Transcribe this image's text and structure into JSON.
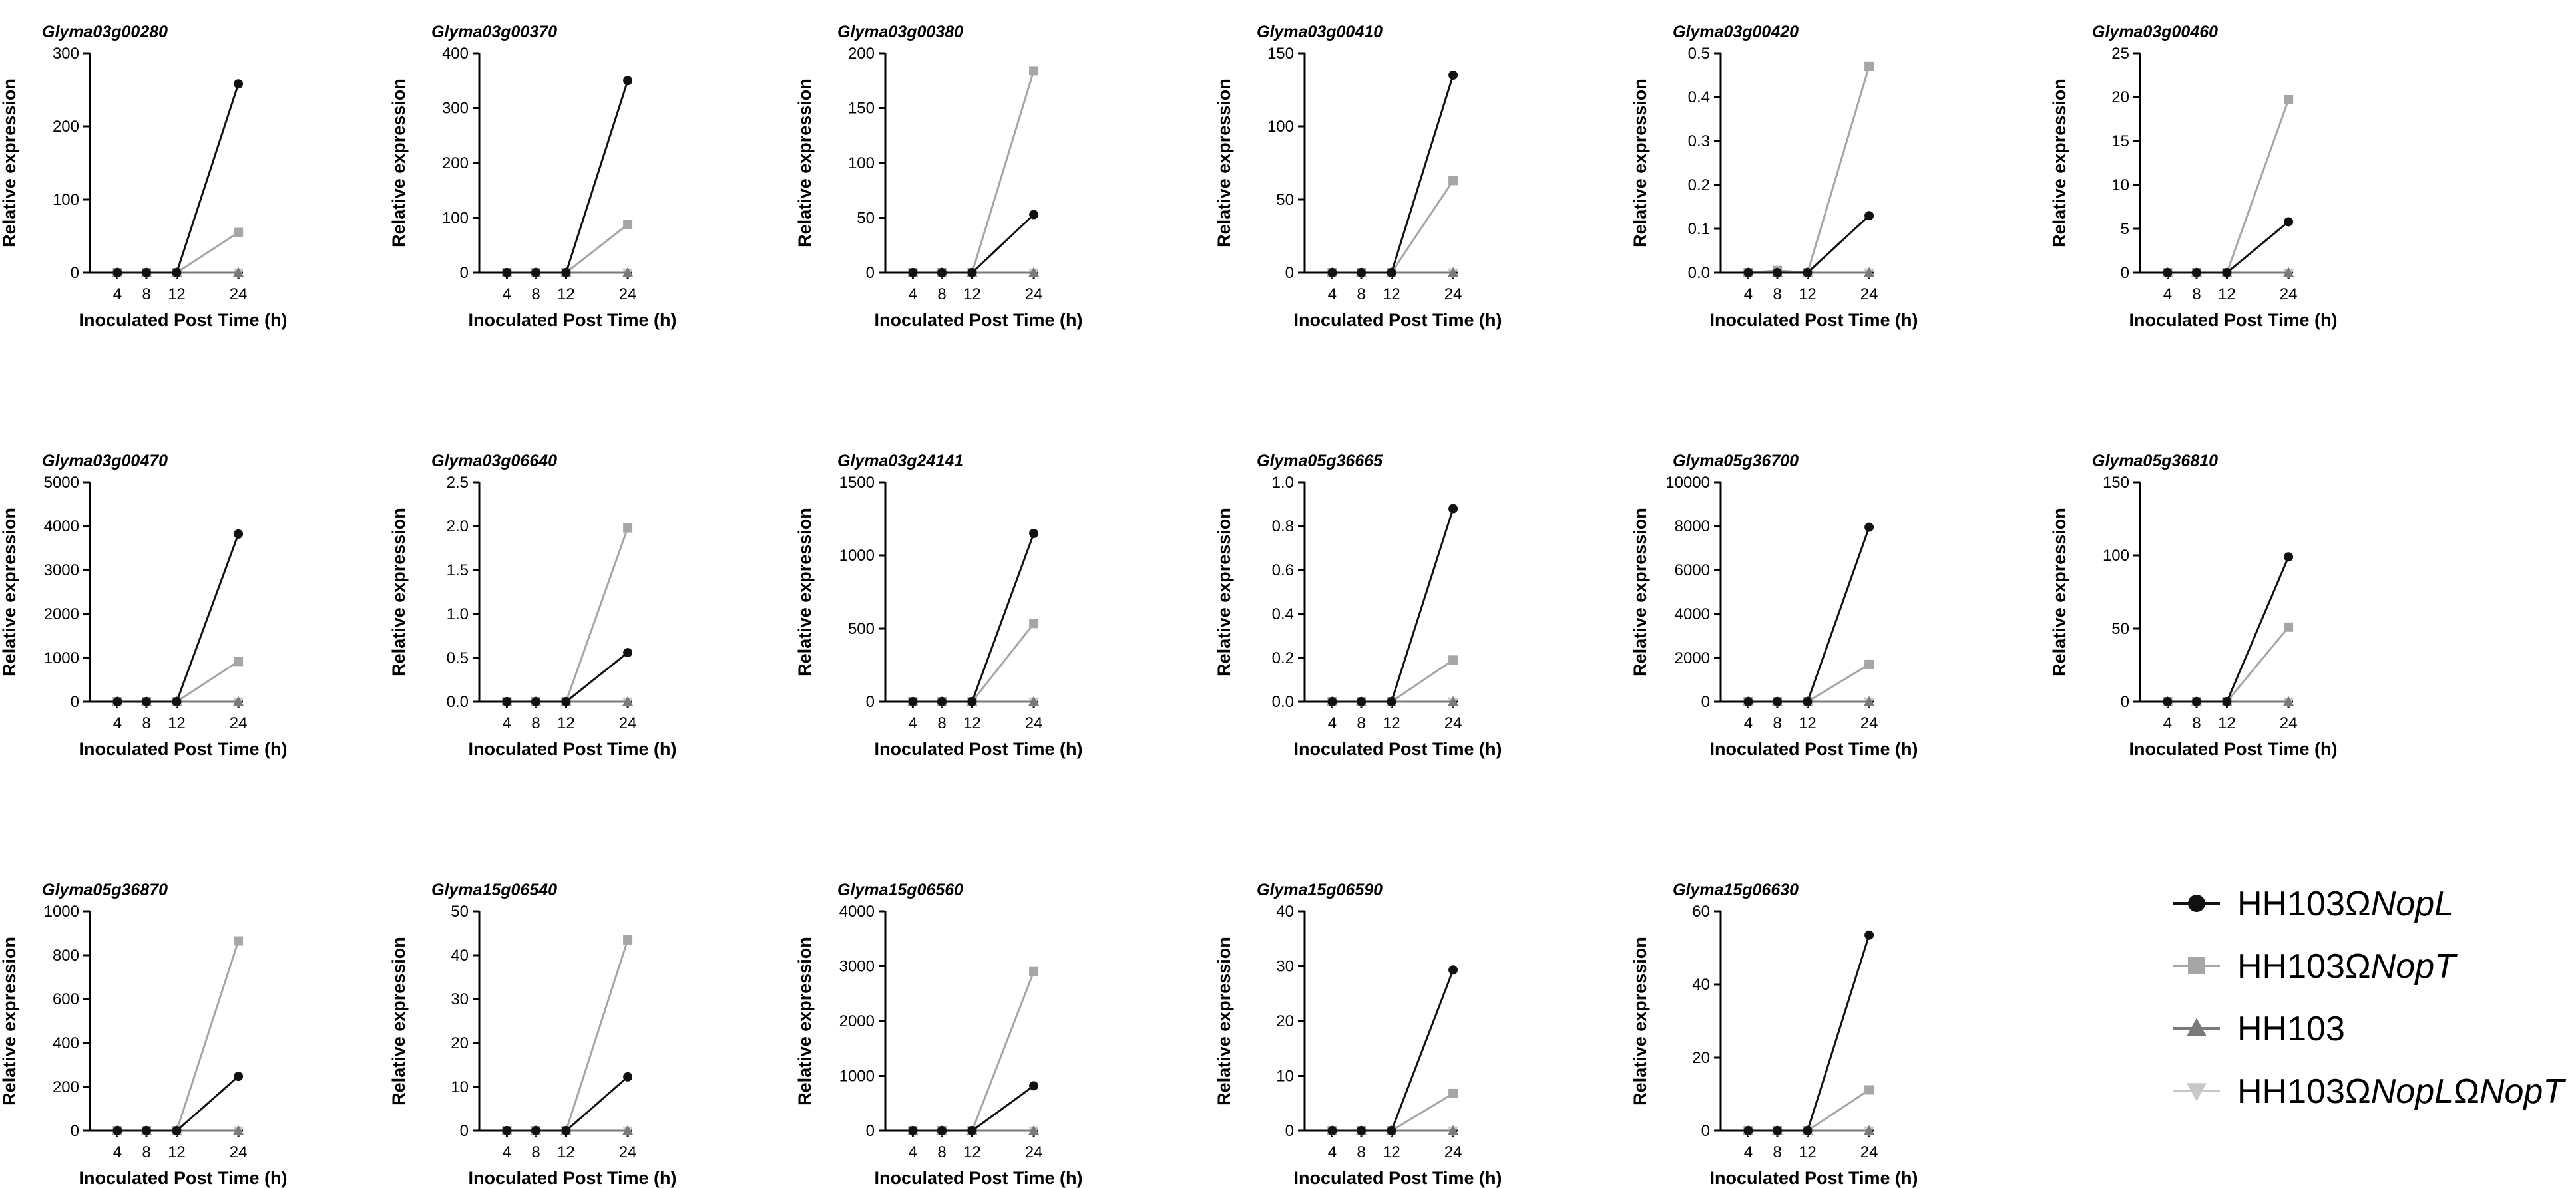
{
  "chart_data": {
    "type": "line",
    "x": [
      "4",
      "8",
      "12",
      "24"
    ],
    "xlabel": "Inoculated Post Time (h)",
    "ylabel": "Relative expression",
    "legend": {
      "position": "bottom-right",
      "items": [
        {
          "key": "nopl",
          "parts": [
            {
              "text": "HH103Ω",
              "italic": false
            },
            {
              "text": "NopL",
              "italic": true
            }
          ],
          "color": "#111111",
          "marker": "circle"
        },
        {
          "key": "nopt",
          "parts": [
            {
              "text": "HH103Ω",
              "italic": false
            },
            {
              "text": "NopT",
              "italic": true
            }
          ],
          "color": "#a6a6a6",
          "marker": "square"
        },
        {
          "key": "wt",
          "parts": [
            {
              "text": "HH103",
              "italic": false
            }
          ],
          "color": "#7a7a7a",
          "marker": "triangle-up"
        },
        {
          "key": "double",
          "parts": [
            {
              "text": "HH103Ω",
              "italic": false
            },
            {
              "text": "NopL",
              "italic": true
            },
            {
              "text": "Ω",
              "italic": false
            },
            {
              "text": "NopT",
              "italic": true
            }
          ],
          "color": "#c8c8c8",
          "marker": "triangle-down"
        }
      ]
    },
    "panels": [
      {
        "title": "Glyma03g00280",
        "ylim": [
          0,
          300
        ],
        "yticks": [
          "0",
          "100",
          "200",
          "300"
        ],
        "series": [
          {
            "key": "nopl",
            "values": [
              0,
              0,
              0,
              258
            ]
          },
          {
            "key": "nopt",
            "values": [
              0,
              0,
              0,
              55
            ]
          },
          {
            "key": "wt",
            "values": [
              0,
              0,
              0,
              0
            ]
          },
          {
            "key": "double",
            "values": [
              0,
              0,
              0,
              0
            ]
          }
        ]
      },
      {
        "title": "Glyma03g00370",
        "ylim": [
          0,
          400
        ],
        "yticks": [
          "0",
          "100",
          "200",
          "300",
          "400"
        ],
        "series": [
          {
            "key": "nopl",
            "values": [
              0,
              0,
              0,
              350
            ]
          },
          {
            "key": "nopt",
            "values": [
              0,
              0,
              0,
              88
            ]
          },
          {
            "key": "wt",
            "values": [
              0,
              0,
              0,
              0
            ]
          },
          {
            "key": "double",
            "values": [
              0,
              0,
              0,
              0
            ]
          }
        ]
      },
      {
        "title": "Glyma03g00380",
        "ylim": [
          0,
          200
        ],
        "yticks": [
          "0",
          "50",
          "100",
          "150",
          "200"
        ],
        "series": [
          {
            "key": "nopl",
            "values": [
              0,
              0,
              0,
              53
            ]
          },
          {
            "key": "nopt",
            "values": [
              0,
              0,
              0,
              184
            ]
          },
          {
            "key": "wt",
            "values": [
              0,
              0,
              0,
              0
            ]
          },
          {
            "key": "double",
            "values": [
              0,
              0,
              0,
              0
            ]
          }
        ]
      },
      {
        "title": "Glyma03g00410",
        "ylim": [
          0,
          150
        ],
        "yticks": [
          "0",
          "50",
          "100",
          "150"
        ],
        "series": [
          {
            "key": "nopl",
            "values": [
              0,
              0,
              0,
              135
            ]
          },
          {
            "key": "nopt",
            "values": [
              0,
              0,
              0,
              63
            ]
          },
          {
            "key": "wt",
            "values": [
              0,
              0,
              0,
              0
            ]
          },
          {
            "key": "double",
            "values": [
              0,
              0,
              0,
              0
            ]
          }
        ]
      },
      {
        "title": "Glyma03g00420",
        "ylim": [
          0,
          0.5
        ],
        "yticks": [
          "0.0",
          "0.1",
          "0.2",
          "0.3",
          "0.4",
          "0.5"
        ],
        "series": [
          {
            "key": "nopl",
            "values": [
              0,
              0,
              0,
              0.13
            ]
          },
          {
            "key": "nopt",
            "values": [
              0,
              0.005,
              0,
              0.47
            ]
          },
          {
            "key": "wt",
            "values": [
              0,
              0,
              0,
              0
            ]
          },
          {
            "key": "double",
            "values": [
              0,
              0,
              0,
              0
            ]
          }
        ]
      },
      {
        "title": "Glyma03g00460",
        "ylim": [
          0,
          25
        ],
        "yticks": [
          "0",
          "5",
          "10",
          "15",
          "20",
          "25"
        ],
        "series": [
          {
            "key": "nopl",
            "values": [
              0,
              0,
              0,
              5.8
            ]
          },
          {
            "key": "nopt",
            "values": [
              0,
              0,
              0,
              19.7
            ]
          },
          {
            "key": "wt",
            "values": [
              0,
              0,
              0,
              0
            ]
          },
          {
            "key": "double",
            "values": [
              0,
              0,
              0,
              0
            ]
          }
        ]
      },
      {
        "title": "Glyma03g00470",
        "ylim": [
          0,
          5000
        ],
        "yticks": [
          "0",
          "1000",
          "2000",
          "3000",
          "4000",
          "5000"
        ],
        "series": [
          {
            "key": "nopl",
            "values": [
              0,
              0,
              0,
              3820
            ]
          },
          {
            "key": "nopt",
            "values": [
              0,
              0,
              0,
              920
            ]
          },
          {
            "key": "wt",
            "values": [
              0,
              0,
              0,
              0
            ]
          },
          {
            "key": "double",
            "values": [
              0,
              0,
              0,
              0
            ]
          }
        ]
      },
      {
        "title": "Glyma03g06640",
        "ylim": [
          0,
          2.5
        ],
        "yticks": [
          "0.0",
          "0.5",
          "1.0",
          "1.5",
          "2.0",
          "2.5"
        ],
        "series": [
          {
            "key": "nopl",
            "values": [
              0,
              0,
              0,
              0.56
            ]
          },
          {
            "key": "nopt",
            "values": [
              0,
              0,
              0,
              1.98
            ]
          },
          {
            "key": "wt",
            "values": [
              0,
              0,
              0,
              0
            ]
          },
          {
            "key": "double",
            "values": [
              0,
              0,
              0,
              0
            ]
          }
        ]
      },
      {
        "title": "Glyma03g24141",
        "ylim": [
          0,
          1500
        ],
        "yticks": [
          "0",
          "500",
          "1000",
          "1500"
        ],
        "series": [
          {
            "key": "nopl",
            "values": [
              0,
              0,
              0,
              1150
            ]
          },
          {
            "key": "nopt",
            "values": [
              0,
              0,
              0,
              535
            ]
          },
          {
            "key": "wt",
            "values": [
              0,
              0,
              0,
              0
            ]
          },
          {
            "key": "double",
            "values": [
              0,
              0,
              0,
              0
            ]
          }
        ]
      },
      {
        "title": "Glyma05g36665",
        "ylim": [
          0,
          1.0
        ],
        "yticks": [
          "0.0",
          "0.2",
          "0.4",
          "0.6",
          "0.8",
          "1.0"
        ],
        "series": [
          {
            "key": "nopl",
            "values": [
              0,
              0,
              0,
              0.88
            ]
          },
          {
            "key": "nopt",
            "values": [
              0,
              0,
              0,
              0.19
            ]
          },
          {
            "key": "wt",
            "values": [
              0,
              0,
              0,
              0
            ]
          },
          {
            "key": "double",
            "values": [
              0,
              0,
              0,
              0
            ]
          }
        ]
      },
      {
        "title": "Glyma05g36700",
        "ylim": [
          0,
          10000
        ],
        "yticks": [
          "0",
          "2000",
          "4000",
          "6000",
          "8000",
          "10000"
        ],
        "series": [
          {
            "key": "nopl",
            "values": [
              0,
              0,
              0,
              7950
            ]
          },
          {
            "key": "nopt",
            "values": [
              0,
              0,
              0,
              1700
            ]
          },
          {
            "key": "wt",
            "values": [
              0,
              0,
              0,
              0
            ]
          },
          {
            "key": "double",
            "values": [
              0,
              0,
              0,
              0
            ]
          }
        ]
      },
      {
        "title": "Glyma05g36810",
        "ylim": [
          0,
          150
        ],
        "yticks": [
          "0",
          "50",
          "100",
          "150"
        ],
        "series": [
          {
            "key": "nopl",
            "values": [
              0,
              0,
              0,
              99
            ]
          },
          {
            "key": "nopt",
            "values": [
              0,
              0,
              0,
              51
            ]
          },
          {
            "key": "wt",
            "values": [
              0,
              0,
              0,
              0
            ]
          },
          {
            "key": "double",
            "values": [
              0,
              0,
              0,
              0
            ]
          }
        ]
      },
      {
        "title": "Glyma05g36870",
        "ylim": [
          0,
          1000
        ],
        "yticks": [
          "0",
          "200",
          "400",
          "600",
          "800",
          "1000"
        ],
        "series": [
          {
            "key": "nopl",
            "values": [
              0,
              0,
              0,
              248
            ]
          },
          {
            "key": "nopt",
            "values": [
              0,
              0,
              0,
              865
            ]
          },
          {
            "key": "wt",
            "values": [
              0,
              0,
              0,
              0
            ]
          },
          {
            "key": "double",
            "values": [
              0,
              0,
              0,
              0
            ]
          }
        ]
      },
      {
        "title": "Glyma15g06540",
        "ylim": [
          0,
          50
        ],
        "yticks": [
          "0",
          "10",
          "20",
          "30",
          "40",
          "50"
        ],
        "series": [
          {
            "key": "nopl",
            "values": [
              0,
              0,
              0,
              12.3
            ]
          },
          {
            "key": "nopt",
            "values": [
              0,
              0,
              0,
              43.5
            ]
          },
          {
            "key": "wt",
            "values": [
              0,
              0,
              0,
              0
            ]
          },
          {
            "key": "double",
            "values": [
              0,
              0,
              0,
              0
            ]
          }
        ]
      },
      {
        "title": "Glyma15g06560",
        "ylim": [
          0,
          4000
        ],
        "yticks": [
          "0",
          "1000",
          "2000",
          "3000",
          "4000"
        ],
        "series": [
          {
            "key": "nopl",
            "values": [
              0,
              0,
              0,
              820
            ]
          },
          {
            "key": "nopt",
            "values": [
              0,
              0,
              0,
              2900
            ]
          },
          {
            "key": "wt",
            "values": [
              0,
              0,
              0,
              0
            ]
          },
          {
            "key": "double",
            "values": [
              0,
              0,
              0,
              0
            ]
          }
        ]
      },
      {
        "title": "Glyma15g06590",
        "ylim": [
          0,
          40
        ],
        "yticks": [
          "0",
          "10",
          "20",
          "30",
          "40"
        ],
        "series": [
          {
            "key": "nopl",
            "values": [
              0,
              0,
              0,
              29.3
            ]
          },
          {
            "key": "nopt",
            "values": [
              0,
              0,
              0,
              6.8
            ]
          },
          {
            "key": "wt",
            "values": [
              0,
              0,
              0,
              0
            ]
          },
          {
            "key": "double",
            "values": [
              0,
              0,
              0,
              0
            ]
          }
        ]
      },
      {
        "title": "Glyma15g06630",
        "ylim": [
          0,
          60
        ],
        "yticks": [
          "0",
          "20",
          "40",
          "60"
        ],
        "series": [
          {
            "key": "nopl",
            "values": [
              0,
              0,
              0,
              53.5
            ]
          },
          {
            "key": "nopt",
            "values": [
              0,
              0,
              0,
              11.2
            ]
          },
          {
            "key": "wt",
            "values": [
              0,
              0,
              0,
              0
            ]
          },
          {
            "key": "double",
            "values": [
              0,
              0,
              0,
              0
            ]
          }
        ]
      }
    ]
  }
}
